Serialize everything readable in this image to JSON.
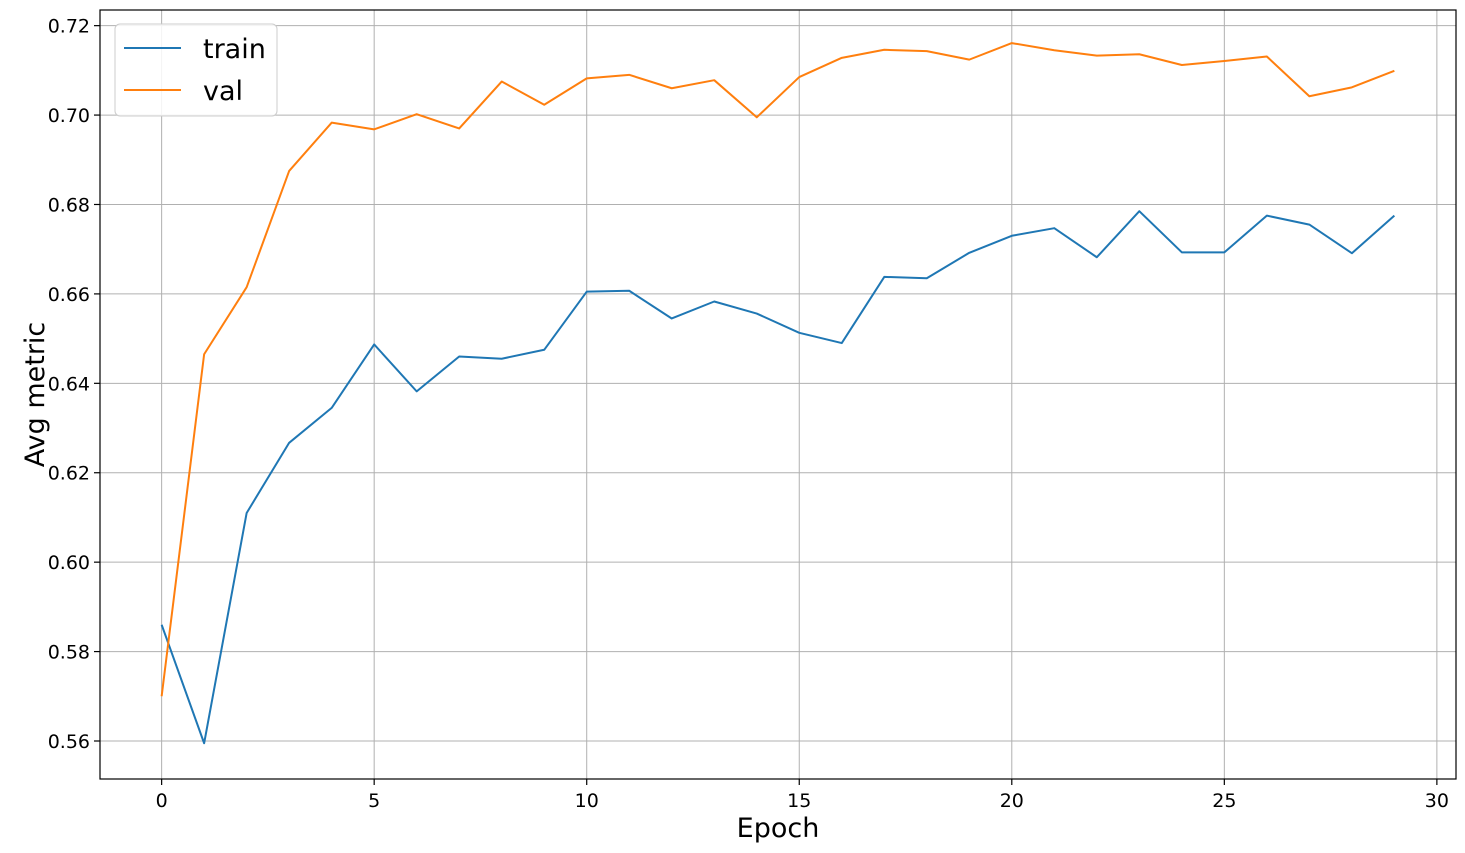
{
  "chart_data": {
    "type": "line",
    "title": "",
    "xlabel": "Epoch",
    "ylabel": "Avg metric",
    "xlim": [
      -1.45,
      30.45
    ],
    "ylim": [
      0.5515,
      0.7235
    ],
    "xticks": [
      0,
      5,
      10,
      15,
      20,
      25,
      30
    ],
    "xtick_labels": [
      "0",
      "5",
      "10",
      "15",
      "20",
      "25",
      "30"
    ],
    "yticks": [
      0.56,
      0.58,
      0.6,
      0.62,
      0.64,
      0.66,
      0.68,
      0.7,
      0.72
    ],
    "ytick_labels": [
      "0.56",
      "0.58",
      "0.60",
      "0.62",
      "0.64",
      "0.66",
      "0.68",
      "0.70",
      "0.72"
    ],
    "grid": true,
    "legend_position": "top-left",
    "x": [
      0,
      1,
      2,
      3,
      4,
      5,
      6,
      7,
      8,
      9,
      10,
      11,
      12,
      13,
      14,
      15,
      16,
      17,
      18,
      19,
      20,
      21,
      22,
      23,
      24,
      25,
      26,
      27,
      28,
      29
    ],
    "series": [
      {
        "name": "train",
        "color": "#1f77b4",
        "values": [
          0.586,
          0.5595,
          0.611,
          0.6267,
          0.6345,
          0.6487,
          0.6382,
          0.646,
          0.6455,
          0.6475,
          0.6605,
          0.6607,
          0.6545,
          0.6583,
          0.6556,
          0.6513,
          0.649,
          0.6638,
          0.6635,
          0.6692,
          0.673,
          0.6747,
          0.6682,
          0.6785,
          0.6693,
          0.6693,
          0.6775,
          0.6755,
          0.6691,
          0.6775
        ]
      },
      {
        "name": "val",
        "color": "#ff7f0e",
        "values": [
          0.57,
          0.6465,
          0.6615,
          0.6875,
          0.6983,
          0.6968,
          0.7002,
          0.697,
          0.7075,
          0.7023,
          0.7082,
          0.709,
          0.706,
          0.7078,
          0.6995,
          0.7085,
          0.7128,
          0.7146,
          0.7143,
          0.7124,
          0.7161,
          0.7145,
          0.7133,
          0.7136,
          0.7112,
          0.7121,
          0.7131,
          0.7042,
          0.7062,
          0.7099
        ]
      }
    ]
  }
}
